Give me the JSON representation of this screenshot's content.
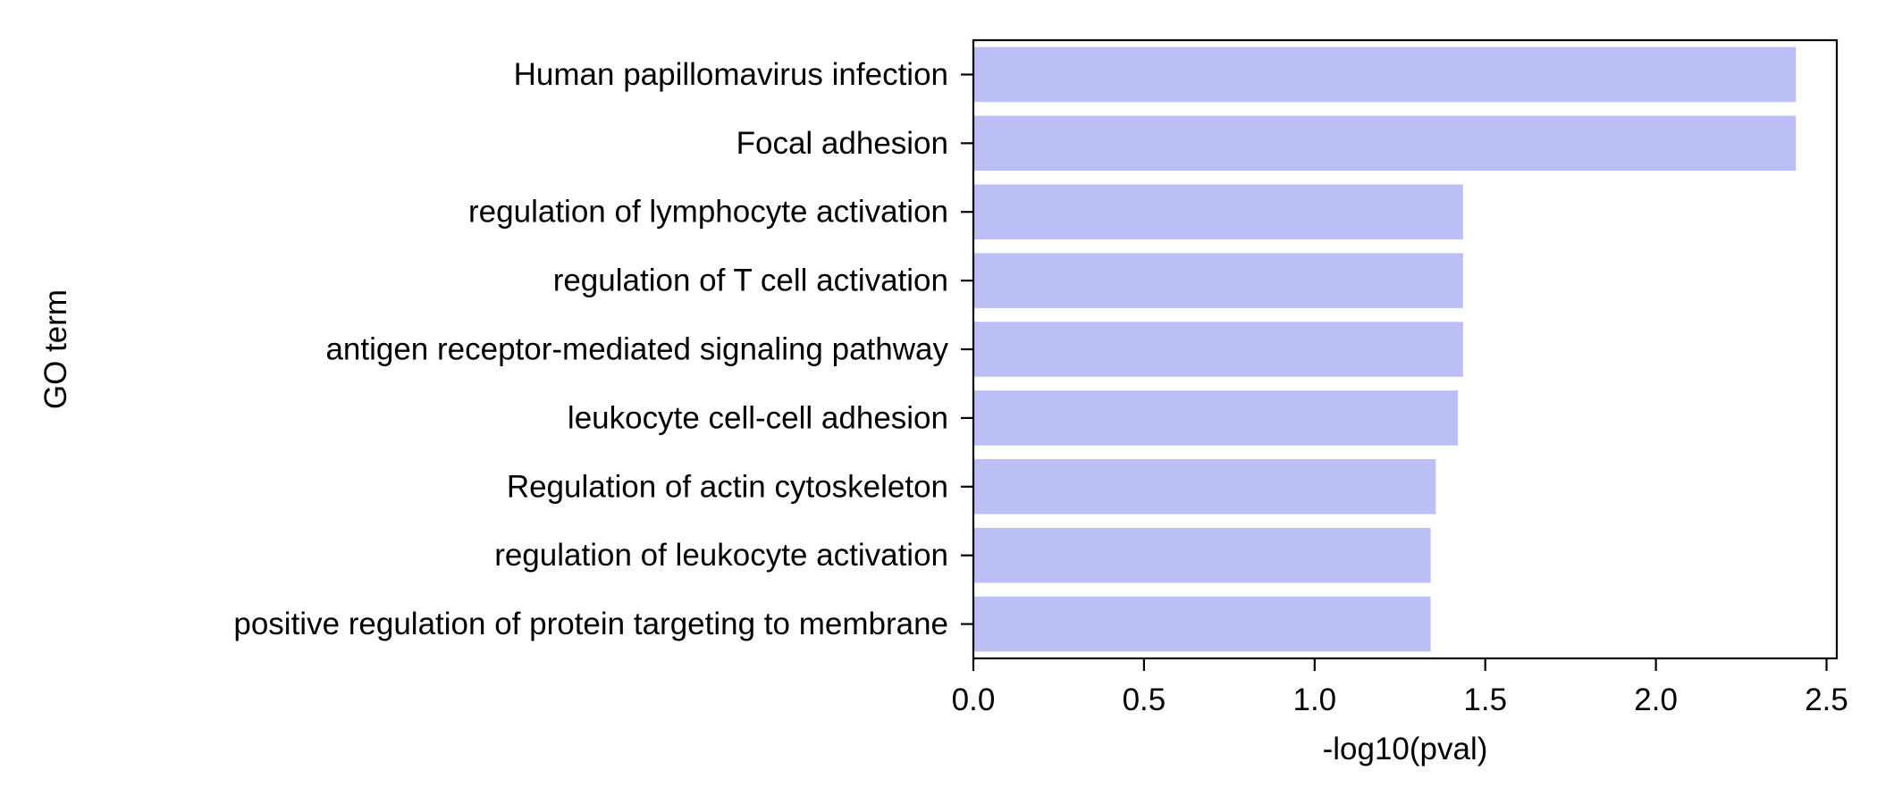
{
  "chart_data": {
    "type": "bar",
    "orientation": "horizontal",
    "categories": [
      "Human papillomavirus infection",
      "Focal adhesion",
      "regulation of lymphocyte activation",
      "regulation of T cell activation",
      "antigen receptor-mediated signaling pathway",
      "leukocyte cell-cell adhesion",
      "Regulation of actin cytoskeleton",
      "regulation of leukocyte activation",
      "positive regulation of protein targeting to membrane"
    ],
    "values": [
      2.41,
      2.41,
      1.435,
      1.435,
      1.435,
      1.42,
      1.355,
      1.34,
      1.34
    ],
    "xlabel": "-log10(pval)",
    "ylabel": "GO term",
    "xlim": [
      0,
      2.53
    ],
    "xticks": [
      "0.0",
      "0.5",
      "1.0",
      "1.5",
      "2.0",
      "2.5"
    ],
    "grid": false,
    "legend": "none",
    "bar_color": "#bbbff6"
  }
}
